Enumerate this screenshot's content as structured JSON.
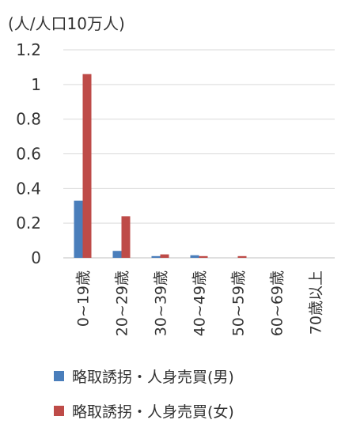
{
  "chart_data": {
    "type": "bar",
    "unit_label": "(人/人口10万人)",
    "categories": [
      "0~19歳",
      "20~29歳",
      "30~39歳",
      "40~49歳",
      "50~59歳",
      "60~69歳",
      "70歳以上"
    ],
    "series": [
      {
        "name": "略取誘拐・人身売買(男)",
        "color": "#4a7ebb",
        "values": [
          0.33,
          0.04,
          0.01,
          0.015,
          0.0,
          0.0,
          0.0
        ]
      },
      {
        "name": "略取誘拐・人身売買(女)",
        "color": "#be4b48",
        "values": [
          1.06,
          0.24,
          0.02,
          0.01,
          0.01,
          0.0,
          0.0
        ]
      }
    ],
    "ylim": [
      0,
      1.2
    ],
    "yticks": [
      "0",
      "0.2",
      "0.4",
      "0.6",
      "0.8",
      "1",
      "1.2"
    ],
    "grid": true,
    "legend_position": "bottom"
  }
}
